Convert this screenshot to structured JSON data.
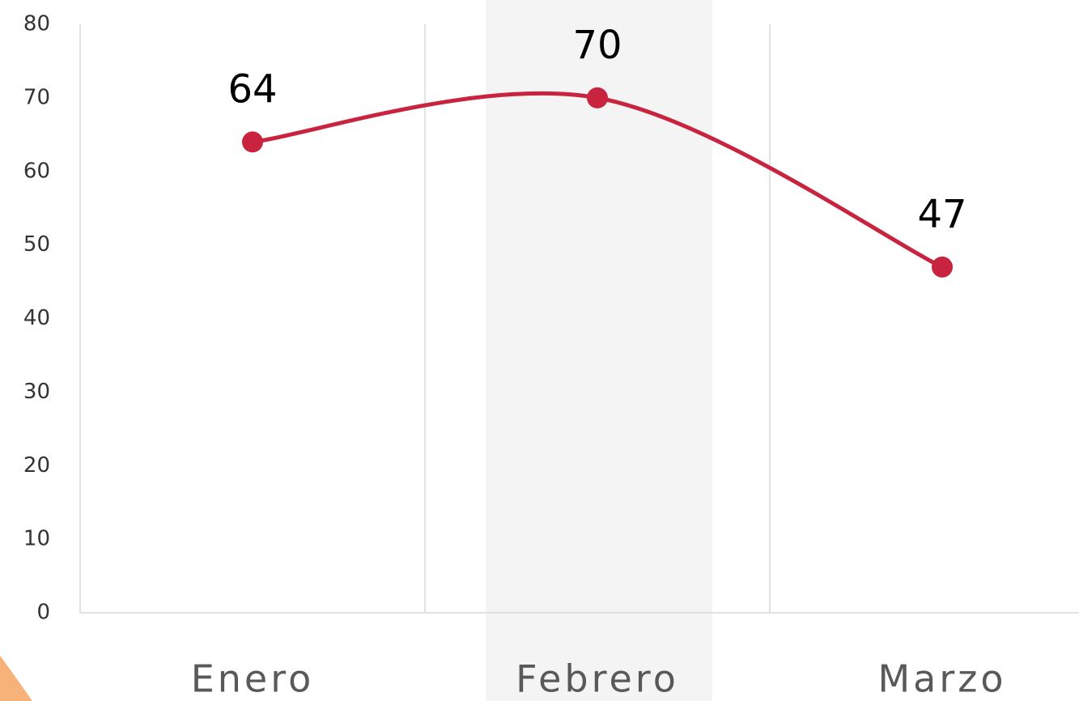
{
  "chart_data": {
    "type": "line",
    "categories": [
      "Enero",
      "Febrero",
      "Marzo"
    ],
    "values": [
      64,
      70,
      47
    ],
    "color": "#c8243f",
    "smooth": true,
    "data_labels": true,
    "ylim": [
      0,
      80
    ],
    "yticks": [
      0,
      10,
      20,
      30,
      40,
      50,
      60,
      70,
      80
    ],
    "grid": true
  }
}
